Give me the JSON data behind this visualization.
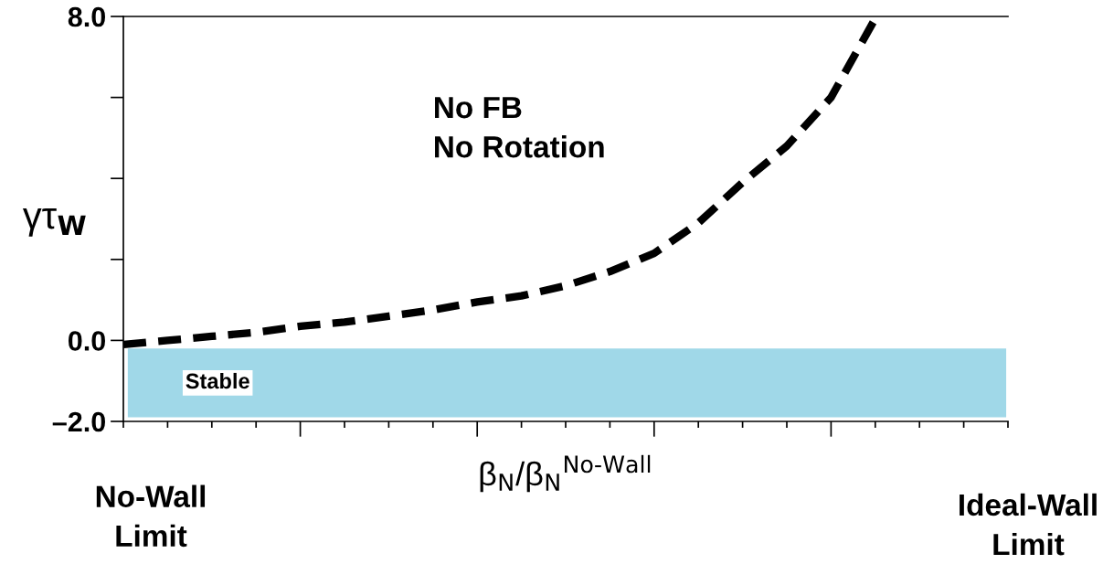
{
  "chart_data": {
    "type": "line",
    "xlabel": "β$_{N}$/β$_{N}$$^{No-Wall}$",
    "ylabel": "γτ$_{W}$",
    "categories": [
      null,
      null,
      null,
      null,
      null,
      null,
      null,
      null,
      null,
      null,
      null,
      null,
      null,
      null,
      null,
      null,
      null,
      null,
      null,
      null,
      null
    ],
    "series": [
      {
        "color": "#000000",
        "values": [
          -0.1,
          0.0,
          0.1,
          0.2,
          0.35,
          0.45,
          0.6,
          0.75,
          0.95,
          1.1,
          1.35,
          1.7,
          2.15,
          2.9,
          3.9,
          4.8,
          6.0,
          7.95,
          null,
          null,
          null
        ]
      }
    ],
    "ylim": [
      -2,
      8
    ],
    "yticks": [
      {
        "value": -2,
        "label": "–2.0"
      },
      {
        "value": 0,
        "label": "0.0"
      },
      {
        "value": 2,
        "label": null
      },
      {
        "value": 4,
        "label": null
      },
      {
        "value": 6,
        "label": null
      },
      {
        "value": 8,
        "label": "8.0"
      }
    ],
    "bands": [
      {
        "axis": "y",
        "from": -1.9,
        "to": -0.2,
        "label": "Stable",
        "color": "#a0d8e8"
      }
    ],
    "annotations": [
      "No FB\nNo Rotation",
      "No-Wall\nLimit",
      "Ideal-Wall\nLimit"
    ],
    "line_style": "dashed",
    "marker": "none",
    "grid": false,
    "legend": false
  }
}
